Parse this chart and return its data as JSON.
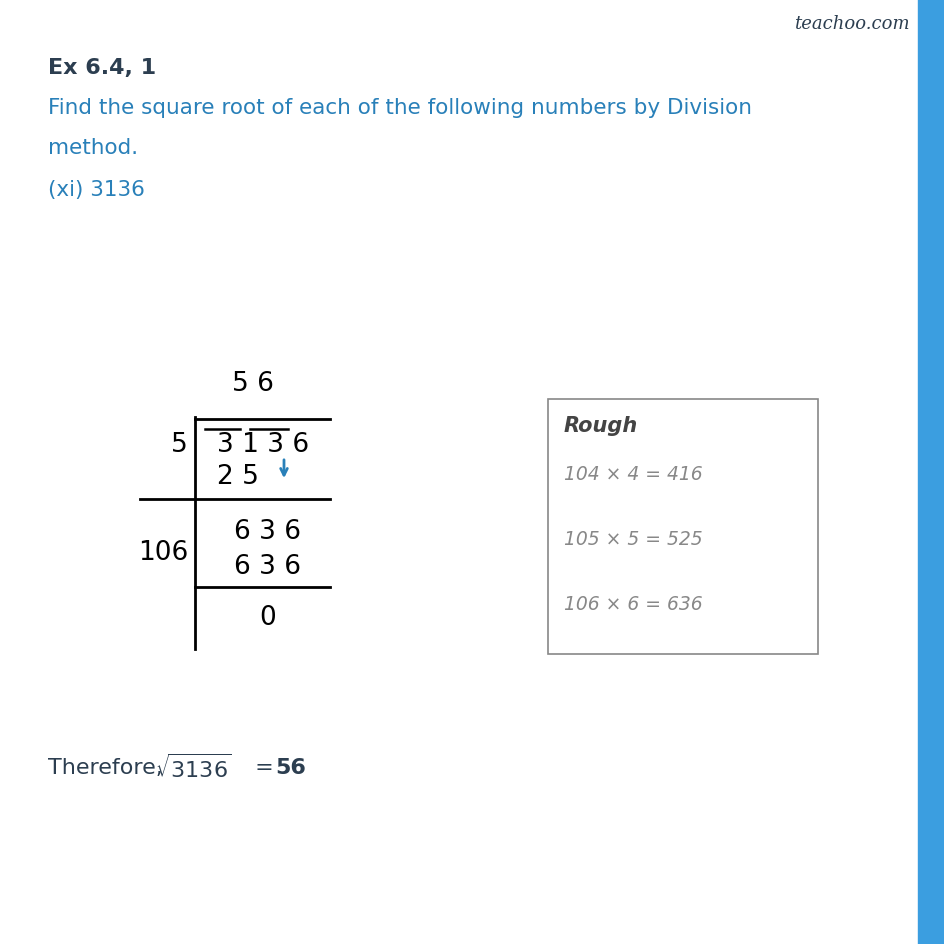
{
  "title": "Ex 6.4, 1",
  "blue_color": "#2980B9",
  "dark_color": "#2C3E50",
  "bg_color": "#FFFFFF",
  "teachoo_text": "teachoo.com",
  "rough_title": "Rough",
  "rough_lines": [
    "104 × 4 = 416",
    "105 × 5 = 525",
    "106 × 6 = 636"
  ],
  "quotient": "5 6",
  "divisor1": "5",
  "dividend": "3 1 3 6",
  "subtraction1": "2 5",
  "remainder1": "6 3 6",
  "divisor2": "106",
  "subtraction2": "6 3 6",
  "remainder2": "0",
  "border_color": "#3B9EE0",
  "rough_text_color": "#888888",
  "rough_border_color": "#888888"
}
